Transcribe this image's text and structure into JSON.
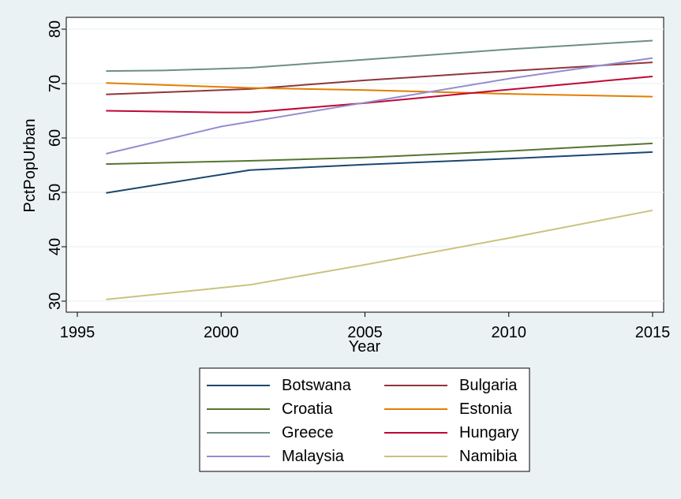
{
  "chart_data": {
    "type": "line",
    "xlabel": "Year",
    "ylabel": "PctPopUrban",
    "xlim": [
      1995,
      2015
    ],
    "ylim": [
      30,
      80
    ],
    "xticks": [
      1995,
      2000,
      2005,
      2010,
      2015
    ],
    "yticks": [
      30,
      40,
      50,
      60,
      70,
      80
    ],
    "grid": "horizontal",
    "legend_position": "bottom",
    "series": [
      {
        "name": "Botswana",
        "color": "#1a476f",
        "x": [
          1996,
          2001,
          2005,
          2010,
          2015
        ],
        "y": [
          49.9,
          54.1,
          55.1,
          56.2,
          57.4
        ]
      },
      {
        "name": "Bulgaria",
        "color": "#90353b",
        "x": [
          1996,
          2001,
          2005,
          2010,
          2015
        ],
        "y": [
          68.0,
          69.0,
          70.6,
          72.3,
          73.9
        ]
      },
      {
        "name": "Croatia",
        "color": "#55752f",
        "x": [
          1996,
          2001,
          2005,
          2010,
          2015
        ],
        "y": [
          55.2,
          55.8,
          56.4,
          57.6,
          59.0
        ]
      },
      {
        "name": "Estonia",
        "color": "#e37e00",
        "x": [
          1996,
          2001,
          2005,
          2010,
          2015
        ],
        "y": [
          70.1,
          69.2,
          68.8,
          68.1,
          67.6
        ]
      },
      {
        "name": "Greece",
        "color": "#6e8e84",
        "x": [
          1996,
          1998,
          2001,
          2005,
          2010,
          2015
        ],
        "y": [
          72.3,
          72.4,
          72.9,
          74.4,
          76.3,
          77.9
        ]
      },
      {
        "name": "Hungary",
        "color": "#c10534",
        "x": [
          1996,
          2000,
          2001,
          2005,
          2010,
          2015
        ],
        "y": [
          65.0,
          64.7,
          64.7,
          66.4,
          68.9,
          71.3
        ]
      },
      {
        "name": "Malaysia",
        "color": "#938dd2",
        "x": [
          1996,
          2000,
          2005,
          2010,
          2015
        ],
        "y": [
          57.1,
          62.1,
          66.5,
          70.9,
          74.7
        ]
      },
      {
        "name": "Namibia",
        "color": "#cac27e",
        "x": [
          1996,
          2001,
          2005,
          2010,
          2015
        ],
        "y": [
          30.3,
          33.0,
          36.7,
          41.6,
          46.7
        ]
      }
    ]
  }
}
